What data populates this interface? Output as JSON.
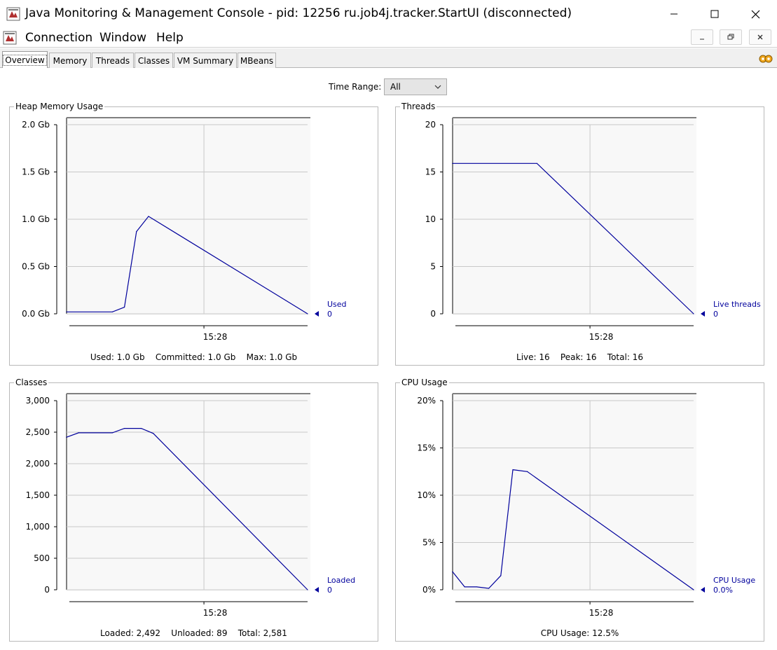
{
  "window": {
    "title": "Java Monitoring & Management Console - pid: 12256 ru.job4j.tracker.StartUI (disconnected)",
    "controls": [
      "minimize-icon",
      "maximize-icon",
      "close-icon"
    ]
  },
  "menu": {
    "items": [
      "Connection",
      "Window",
      "Help"
    ]
  },
  "tabs": [
    "Overview",
    "Memory",
    "Threads",
    "Classes",
    "VM Summary",
    "MBeans"
  ],
  "toolbar": {
    "time_range_label": "Time Range:",
    "time_range_value": "All"
  },
  "colors": {
    "series": "#00009c",
    "grid": "#c8c8c8",
    "plot_background": "#f8f8f8"
  },
  "panels": {
    "heap": {
      "title": "Heap Memory Usage",
      "legend_name": "Used",
      "legend_value": "0",
      "x_tick": "15:28",
      "summary": "Used: 1.0 Gb    Committed: 1.0 Gb    Max: 1.0 Gb"
    },
    "threads": {
      "title": "Threads",
      "legend_name": "Live threads",
      "legend_value": "0",
      "x_tick": "15:28",
      "summary": "Live: 16    Peak: 16    Total: 16"
    },
    "classes": {
      "title": "Classes",
      "legend_name": "Loaded",
      "legend_value": "0",
      "x_tick": "15:28",
      "summary": "Loaded: 2,492    Unloaded: 89    Total: 2,581"
    },
    "cpu": {
      "title": "CPU Usage",
      "legend_name": "CPU Usage",
      "legend_value": "0.0%",
      "x_tick": "15:28",
      "summary": "CPU Usage: 12.5%"
    }
  },
  "chart_data": [
    {
      "type": "line",
      "ylabel": "",
      "yticks": [
        "0.0 Gb",
        "0.5 Gb",
        "1.0 Gb",
        "1.5 Gb",
        "2.0 Gb"
      ],
      "ylim": [
        0,
        2.0
      ],
      "xlim": [
        0,
        100
      ],
      "xticks": [
        {
          "x": 57,
          "label": "15:28"
        }
      ],
      "series": [
        {
          "values": [
            [
              0,
              0.02
            ],
            [
              19,
              0.02
            ],
            [
              24,
              0.07
            ],
            [
              29,
              0.87
            ],
            [
              34,
              1.03
            ],
            [
              100,
              0
            ]
          ]
        }
      ]
    },
    {
      "type": "line",
      "ylabel": "",
      "yticks": [
        "0",
        "5",
        "10",
        "15",
        "20"
      ],
      "ylim": [
        0,
        20
      ],
      "xlim": [
        0,
        100
      ],
      "xticks": [
        {
          "x": 57,
          "label": "15:28"
        }
      ],
      "series": [
        {
          "values": [
            [
              0,
              15.9
            ],
            [
              35,
              15.9
            ],
            [
              100,
              0
            ]
          ]
        }
      ]
    },
    {
      "type": "line",
      "ylabel": "",
      "yticks": [
        "0",
        "500",
        "1,000",
        "1,500",
        "2,000",
        "2,500",
        "3,000"
      ],
      "ylim": [
        0,
        3000
      ],
      "xlim": [
        0,
        100
      ],
      "xticks": [
        {
          "x": 57,
          "label": "15:28"
        }
      ],
      "series": [
        {
          "values": [
            [
              0,
              2420
            ],
            [
              5,
              2490
            ],
            [
              19,
              2490
            ],
            [
              24,
              2560
            ],
            [
              31,
              2560
            ],
            [
              36,
              2480
            ],
            [
              100,
              0
            ]
          ]
        }
      ]
    },
    {
      "type": "line",
      "ylabel": "",
      "yticks": [
        "0%",
        "5%",
        "10%",
        "15%",
        "20%"
      ],
      "ylim": [
        0,
        20
      ],
      "xlim": [
        0,
        100
      ],
      "xticks": [
        {
          "x": 57,
          "label": "15:28"
        }
      ],
      "series": [
        {
          "values": [
            [
              0,
              1.9
            ],
            [
              5,
              0.3
            ],
            [
              10,
              0.3
            ],
            [
              15,
              0.15
            ],
            [
              20,
              1.5
            ],
            [
              25,
              12.7
            ],
            [
              31,
              12.5
            ],
            [
              100,
              0
            ]
          ]
        }
      ]
    }
  ]
}
